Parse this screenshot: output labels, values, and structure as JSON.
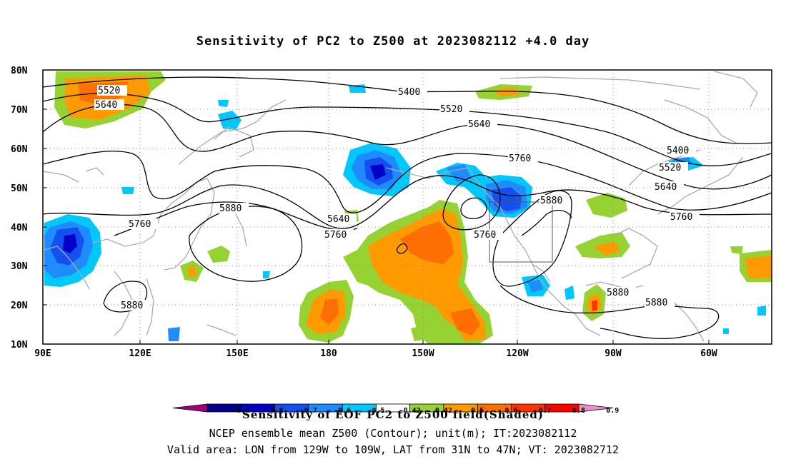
{
  "title": "Sensitivity of PC2 to Z500 at 2023082112 +4.0 day",
  "lat_labels": [
    "80N",
    "70N",
    "60N",
    "50N",
    "40N",
    "30N",
    "20N",
    "10N"
  ],
  "lon_labels": [
    "90E",
    "120E",
    "150E",
    "180",
    "150W",
    "120W",
    "90W",
    "60W"
  ],
  "contour_labels": {
    "l5520_a": "5520",
    "l5640_a": "5640",
    "l5400_a": "5400",
    "l5520_b": "5520",
    "l5640_b": "5640",
    "l5760_a": "5760",
    "l5400_b": "5400",
    "l5520_c": "5520",
    "l5640_c": "5640",
    "l5760_b": "5760",
    "l5880_a": "5880",
    "l5760_c": "5760",
    "l5880_b": "5880",
    "l5640_d": "5640",
    "l5760_d": "5760",
    "l5760_e": "5760",
    "l5880_c": "5880",
    "l5880_d": "5880",
    "l5880_e": "5880"
  },
  "colorbar": {
    "levels": [
      "-0.9",
      "-0.8",
      "-0.7",
      "-0.6",
      "-0.5",
      "-0.42",
      "0.42",
      "0.5",
      "0.6",
      "0.7",
      "0.8",
      "0.9"
    ],
    "colors": [
      "#a0007a",
      "#00008c",
      "#0000c8",
      "#1450f0",
      "#1e8cff",
      "#00c8ff",
      "#ffffff",
      "#96d232",
      "#ff9b00",
      "#ff6e00",
      "#ff3200",
      "#ff0000",
      "#f08cc8"
    ]
  },
  "footer": {
    "line1": "Sensitivity of EOF PC2 to Z500 field(Shaded)",
    "line2": "NCEP ensemble mean Z500 (Contour); unit(m); IT:2023082112",
    "line3": "Valid area: LON from 129W to 109W, LAT from 31N to 47N; VT: 2023082712"
  },
  "colors": {
    "positive": "#ff9b00",
    "negative": "#1450f0",
    "contour": "#000000",
    "coast": "#aaaaaa"
  }
}
